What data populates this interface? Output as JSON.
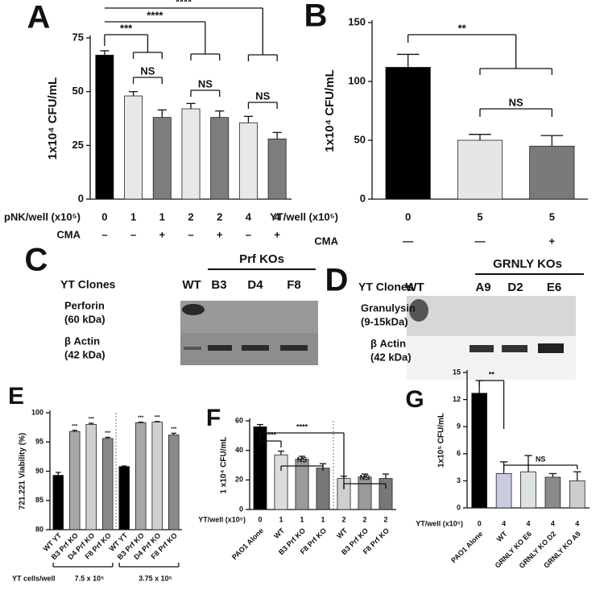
{
  "chart_data": [
    {
      "type": "bar",
      "panel": "A",
      "ylabel": "1x10⁴ CFU/mL",
      "values": [
        67,
        48,
        38,
        42,
        38,
        35.5,
        28
      ],
      "errors": [
        2,
        2,
        3.5,
        2.5,
        3,
        3,
        3
      ],
      "colors": [
        "#000000",
        "#e8e8e8",
        "#7d7d7d",
        "#e8e8e8",
        "#7d7d7d",
        "#e8e8e8",
        "#7d7d7d"
      ],
      "ylim": [
        0,
        75
      ],
      "yticks": [
        0,
        25,
        50,
        75
      ],
      "xrows": [
        {
          "label": "pNK/well (x10⁵)",
          "values": [
            "0",
            "1",
            "1",
            "2",
            "2",
            "4",
            "4"
          ]
        },
        {
          "label": "CMA",
          "values": [
            "–",
            "–",
            "+",
            "–",
            "+",
            "–",
            "+"
          ]
        }
      ],
      "annotations": [
        "***",
        "****",
        "****",
        "NS",
        "NS",
        "NS"
      ]
    },
    {
      "type": "bar",
      "panel": "B",
      "ylabel": "1x10⁴ CFU/mL",
      "values": [
        112,
        50,
        45
      ],
      "errors": [
        11,
        5,
        9
      ],
      "colors": [
        "#000000",
        "#e6e6e6",
        "#7a7a7a"
      ],
      "ylim": [
        0,
        150
      ],
      "yticks": [
        0,
        50,
        100,
        150
      ],
      "xrows": [
        {
          "label": "YT/well (x10⁵)",
          "values": [
            "0",
            "5",
            "5"
          ]
        },
        {
          "label": "CMA",
          "values": [
            "—",
            "—",
            "+"
          ]
        }
      ],
      "annotations": [
        "**",
        "NS"
      ]
    },
    {
      "type": "bar",
      "panel": "E",
      "ylabel": "721.221 Viability (%)",
      "categories": [
        "WT YT",
        "B3 Prf KO",
        "D4 Prf KO",
        "F8 Prf KO",
        "WT YT",
        "B3 Prf KO",
        "D4 Prf KO",
        "F8 Prf KO"
      ],
      "values": [
        89.3,
        96.8,
        98.0,
        95.6,
        90.8,
        98.3,
        98.4,
        96.2
      ],
      "errors": [
        0.5,
        0.2,
        0.2,
        0.2,
        0.1,
        0.1,
        0.1,
        0.3
      ],
      "colors": [
        "#000000",
        "#a8a8a8",
        "#d0d0d0",
        "#8a8a8a",
        "#000000",
        "#a8a8a8",
        "#d0d0d0",
        "#8a8a8a"
      ],
      "ylim": [
        80,
        100
      ],
      "yticks": [
        80,
        85,
        90,
        95,
        100
      ],
      "xlabel": "YT cells/well",
      "groups": [
        "7.5 x 10⁵",
        "3.75 x 10⁵"
      ],
      "annotations": [
        "***",
        "***",
        "***",
        "***",
        "***",
        "***"
      ]
    },
    {
      "type": "bar",
      "panel": "F",
      "ylabel": "1 x10⁴ CFU/mL",
      "categories": [
        "PAO1 Alone",
        "WT",
        "B3 Prf KO",
        "F8 Prf KO",
        "WT",
        "B3 Prf KO",
        "F8 Prf KO"
      ],
      "values": [
        56,
        37,
        34,
        28,
        21,
        22,
        21
      ],
      "errors": [
        1.5,
        2.5,
        2,
        3,
        1.5,
        2,
        3
      ],
      "colors": [
        "#000000",
        "#dcdcdc",
        "#9a9a9a",
        "#777777",
        "#cfcfcf",
        "#9a9a9a",
        "#777777"
      ],
      "ylim": [
        0,
        60
      ],
      "yticks": [
        0,
        20,
        40,
        60
      ],
      "xrows": [
        {
          "label": "YT/well (x10⁵)",
          "values": [
            "0",
            "1",
            "1",
            "1",
            "2",
            "2",
            "2"
          ]
        }
      ],
      "annotations": [
        "****",
        "****",
        "NS",
        "NS"
      ]
    },
    {
      "type": "bar",
      "panel": "G",
      "ylabel": "1x10⁵ CFU/mL",
      "categories": [
        "PAO1 Alone",
        "WT",
        "GRNLY KO E6",
        "GRNLY KO D2",
        "GRNLY KO A9"
      ],
      "values": [
        12.7,
        3.8,
        4.0,
        3.4,
        3.0
      ],
      "errors": [
        1.4,
        1.3,
        1.8,
        0.4,
        1.0
      ],
      "colors": [
        "#000000",
        "#c9cbe0",
        "#dde3dd",
        "#8a8a8a",
        "#cccccc"
      ],
      "ylim": [
        0,
        15
      ],
      "yticks": [
        0,
        3,
        6,
        9,
        12,
        15
      ],
      "xrows": [
        {
          "label": "YT/well (x10⁵)",
          "values": [
            "0",
            "4",
            "4",
            "4",
            "4"
          ]
        }
      ],
      "annotations": [
        "**",
        "NS"
      ]
    }
  ],
  "blots": [
    {
      "panel": "C",
      "row_label": "YT Clones",
      "lanes": [
        "WT",
        "B3",
        "D4",
        "F8"
      ],
      "group_label": "Prf KOs",
      "bands": [
        {
          "name": "Perforin",
          "size": "(60 kDa)"
        },
        {
          "name": "β Actin",
          "size": "(42 kDa)"
        }
      ]
    },
    {
      "panel": "D",
      "row_label": "YT Clones",
      "lanes": [
        "WT",
        "A9",
        "D2",
        "E6"
      ],
      "group_label": "GRNLY KOs",
      "bands": [
        {
          "name": "Granulysin",
          "size": "(9-15kDa)"
        },
        {
          "name": "β Actin",
          "size": "(42 kDa)"
        }
      ]
    }
  ]
}
